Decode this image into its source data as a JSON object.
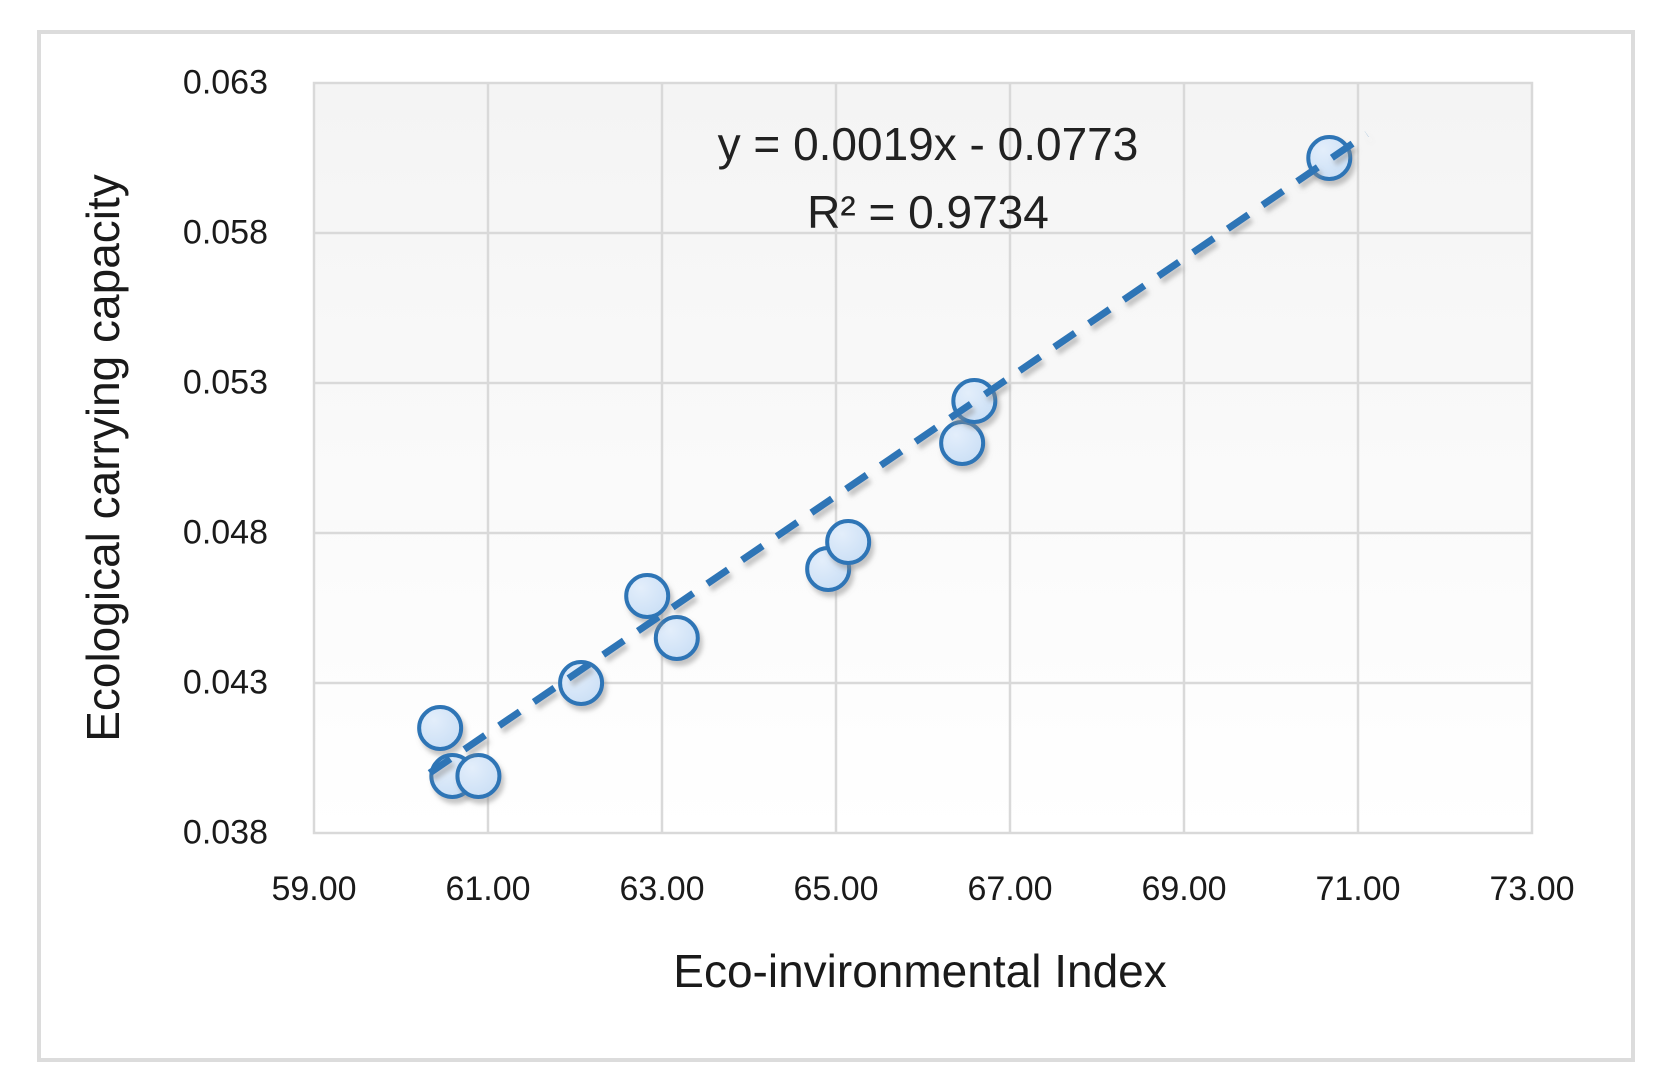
{
  "chart_data": {
    "type": "scatter",
    "title": "",
    "xlabel": "Eco-invironmental Index",
    "ylabel": "Ecological carrying capacity",
    "xlim": [
      59.0,
      73.0
    ],
    "ylim": [
      0.038,
      0.063
    ],
    "grid": true,
    "legend": "none",
    "x_ticks": [
      {
        "value": 59.0,
        "label": "59.00"
      },
      {
        "value": 61.0,
        "label": "61.00"
      },
      {
        "value": 63.0,
        "label": "63.00"
      },
      {
        "value": 65.0,
        "label": "65.00"
      },
      {
        "value": 67.0,
        "label": "67.00"
      },
      {
        "value": 69.0,
        "label": "69.00"
      },
      {
        "value": 71.0,
        "label": "71.00"
      },
      {
        "value": 73.0,
        "label": "73.00"
      }
    ],
    "y_ticks": [
      {
        "value": 0.038,
        "label": "0.038"
      },
      {
        "value": 0.043,
        "label": "0.043"
      },
      {
        "value": 0.048,
        "label": "0.048"
      },
      {
        "value": 0.053,
        "label": "0.053"
      },
      {
        "value": 0.058,
        "label": "0.058"
      },
      {
        "value": 0.063,
        "label": "0.063"
      }
    ],
    "points": [
      {
        "x": 60.45,
        "y": 0.0415
      },
      {
        "x": 60.59,
        "y": 0.0399
      },
      {
        "x": 60.89,
        "y": 0.0399
      },
      {
        "x": 62.07,
        "y": 0.043
      },
      {
        "x": 62.83,
        "y": 0.0459
      },
      {
        "x": 63.17,
        "y": 0.0445
      },
      {
        "x": 64.91,
        "y": 0.0468
      },
      {
        "x": 65.14,
        "y": 0.0477
      },
      {
        "x": 66.45,
        "y": 0.051
      },
      {
        "x": 66.59,
        "y": 0.0524
      },
      {
        "x": 70.67,
        "y": 0.0605
      }
    ],
    "trendline": {
      "style": "dashed",
      "x1": 60.33,
      "y1": 0.04,
      "x2": 71.1,
      "y2": 0.0613,
      "equation": "y = 0.0019x - 0.0773",
      "r_squared": "R² = 0.9734"
    },
    "colors": {
      "marker_fill": "#c9def5",
      "marker_fill_light": "#e3eefb",
      "marker_stroke": "#2e75b6",
      "trendline": "#2e75b6",
      "gridline": "#d9d9d9",
      "plot_bg_top": "#f4f4f4",
      "plot_bg_bottom": "#ffffff",
      "text": "#1a1a1a"
    }
  }
}
